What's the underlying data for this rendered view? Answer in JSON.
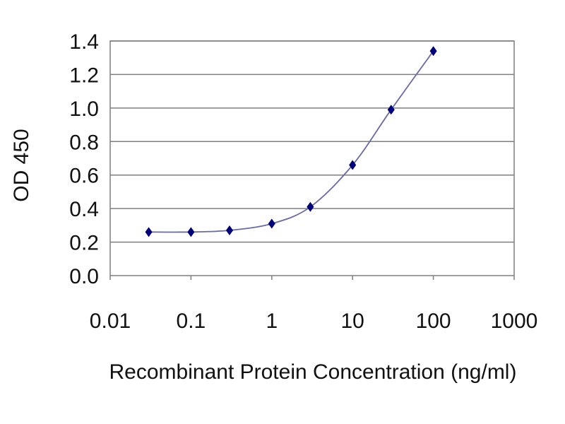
{
  "chart_data": {
    "type": "scatter",
    "title": "",
    "xlabel": "Recombinant Protein Concentration (ng/ml)",
    "ylabel": "OD 450",
    "x_scale": "log",
    "xlim": [
      0.01,
      1000
    ],
    "ylim": [
      0.0,
      1.4
    ],
    "x_ticks": [
      0.01,
      0.1,
      1,
      10,
      100,
      1000
    ],
    "x_tick_labels": [
      "0.01",
      "0.1",
      "1",
      "10",
      "100",
      "1000"
    ],
    "y_ticks": [
      0.0,
      0.2,
      0.4,
      0.6,
      0.8,
      1.0,
      1.2,
      1.4
    ],
    "y_tick_labels": [
      "0.0",
      "0.2",
      "0.4",
      "0.6",
      "0.8",
      "1.0",
      "1.2",
      "1.4"
    ],
    "grid": "horizontal",
    "legend": "none",
    "series": [
      {
        "x": [
          0.03,
          0.1,
          0.3,
          1,
          3,
          10,
          30,
          100
        ],
        "y": [
          0.26,
          0.26,
          0.27,
          0.31,
          0.41,
          0.66,
          0.99,
          1.34
        ],
        "marker": "diamond",
        "color": "#00007a",
        "line_color": "#6a6aa8"
      }
    ]
  }
}
